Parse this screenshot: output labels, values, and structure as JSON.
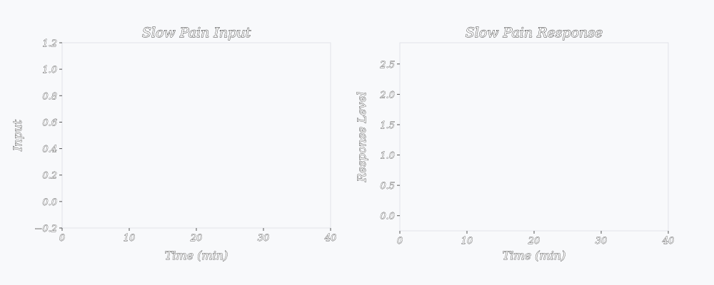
{
  "chart_data": [
    {
      "type": "line",
      "title": "Slow Pain Input",
      "xlabel": "Time (min)",
      "ylabel": "Input",
      "xlim": [
        0,
        40
      ],
      "ylim": [
        -0.2,
        1.2
      ],
      "xticks": [
        0,
        10,
        20,
        30,
        40
      ],
      "xtick_labels": [
        "0",
        "10",
        "20",
        "30",
        "40"
      ],
      "yticks": [
        -0.2,
        0.0,
        0.2,
        0.4,
        0.6,
        0.8,
        1.0,
        1.2
      ],
      "ytick_labels": [
        "−0.2",
        "0.0",
        "0.2",
        "0.4",
        "0.6",
        "0.8",
        "1.0",
        "1.2"
      ],
      "series": [],
      "grid": false
    },
    {
      "type": "line",
      "title": "Slow Pain Response",
      "xlabel": "Time (min)",
      "ylabel": "Response Level",
      "xlim": [
        0,
        40
      ],
      "ylim": [
        -0.25,
        2.85
      ],
      "xticks": [
        0,
        10,
        20,
        30,
        40
      ],
      "xtick_labels": [
        "0",
        "10",
        "20",
        "30",
        "40"
      ],
      "yticks": [
        0.0,
        0.5,
        1.0,
        1.5,
        2.0,
        2.5
      ],
      "ytick_labels": [
        "0.0",
        "0.5",
        "1.0",
        "1.5",
        "2.0",
        "2.5"
      ],
      "series": [],
      "grid": false
    }
  ]
}
